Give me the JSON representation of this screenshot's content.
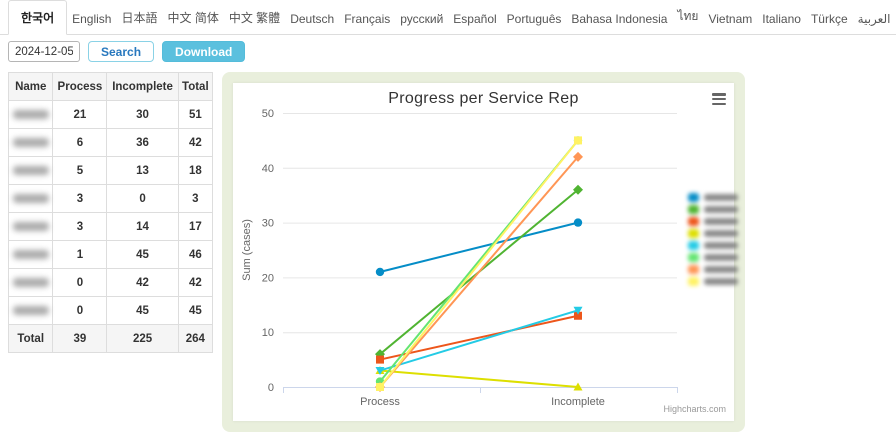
{
  "language_tabs": {
    "active_index": 0,
    "items": [
      "한국어",
      "English",
      "日本語",
      "中文 简体",
      "中文 繁體",
      "Deutsch",
      "Français",
      "русский",
      "Español",
      "Português",
      "Bahasa Indonesia",
      "ไทย",
      "Vietnam",
      "Italiano",
      "Türkçe",
      "العربية"
    ]
  },
  "toolbar": {
    "date_value": "2024-12-05",
    "search_label": "Search",
    "download_label": "Download"
  },
  "table": {
    "headers": [
      "Name",
      "Process",
      "Incomplete",
      "Total"
    ],
    "rows": [
      {
        "name_redacted": true,
        "process": 21,
        "incomplete": 30,
        "total": 51
      },
      {
        "name_redacted": true,
        "process": 6,
        "incomplete": 36,
        "total": 42
      },
      {
        "name_redacted": true,
        "process": 5,
        "incomplete": 13,
        "total": 18
      },
      {
        "name_redacted": true,
        "process": 3,
        "incomplete": 0,
        "total": 3
      },
      {
        "name_redacted": true,
        "process": 3,
        "incomplete": 14,
        "total": 17
      },
      {
        "name_redacted": true,
        "process": 1,
        "incomplete": 45,
        "total": 46
      },
      {
        "name_redacted": true,
        "process": 0,
        "incomplete": 42,
        "total": 42
      },
      {
        "name_redacted": true,
        "process": 0,
        "incomplete": 45,
        "total": 45
      }
    ],
    "footer": {
      "label": "Total",
      "process": 39,
      "incomplete": 225,
      "total": 264
    }
  },
  "chart_data": {
    "type": "line",
    "title": "Progress per Service Rep",
    "categories": [
      "Process",
      "Incomplete"
    ],
    "xlabel": "",
    "ylabel": "Sum (cases)",
    "ylim": [
      0,
      50
    ],
    "yticks": [
      0,
      10,
      20,
      30,
      40,
      50
    ],
    "grid": true,
    "legend_position": "right-vertical-blurred",
    "credits": "Highcharts.com",
    "series": [
      {
        "name_redacted": true,
        "color": "#058DC7",
        "marker": "circle",
        "values": [
          21,
          30
        ]
      },
      {
        "name_redacted": true,
        "color": "#50B432",
        "marker": "diamond",
        "values": [
          6,
          36
        ]
      },
      {
        "name_redacted": true,
        "color": "#ED561B",
        "marker": "square",
        "values": [
          5,
          13
        ]
      },
      {
        "name_redacted": true,
        "color": "#DDDF00",
        "marker": "triangle",
        "values": [
          3,
          0
        ]
      },
      {
        "name_redacted": true,
        "color": "#24CBE5",
        "marker": "triangle-down",
        "values": [
          3,
          14
        ]
      },
      {
        "name_redacted": true,
        "color": "#64E572",
        "marker": "circle",
        "values": [
          1,
          45
        ]
      },
      {
        "name_redacted": true,
        "color": "#FF9655",
        "marker": "diamond",
        "values": [
          0,
          42
        ]
      },
      {
        "name_redacted": true,
        "color": "#FFF263",
        "marker": "square",
        "values": [
          0,
          45
        ]
      }
    ]
  },
  "colors": {
    "accent_blue": "#2878be",
    "button_cyan": "#5bc0de",
    "card_background": "#e9efdc",
    "grid_line": "#e6e6e6",
    "axis_line": "#ccd6eb",
    "axis_text": "#666666"
  }
}
